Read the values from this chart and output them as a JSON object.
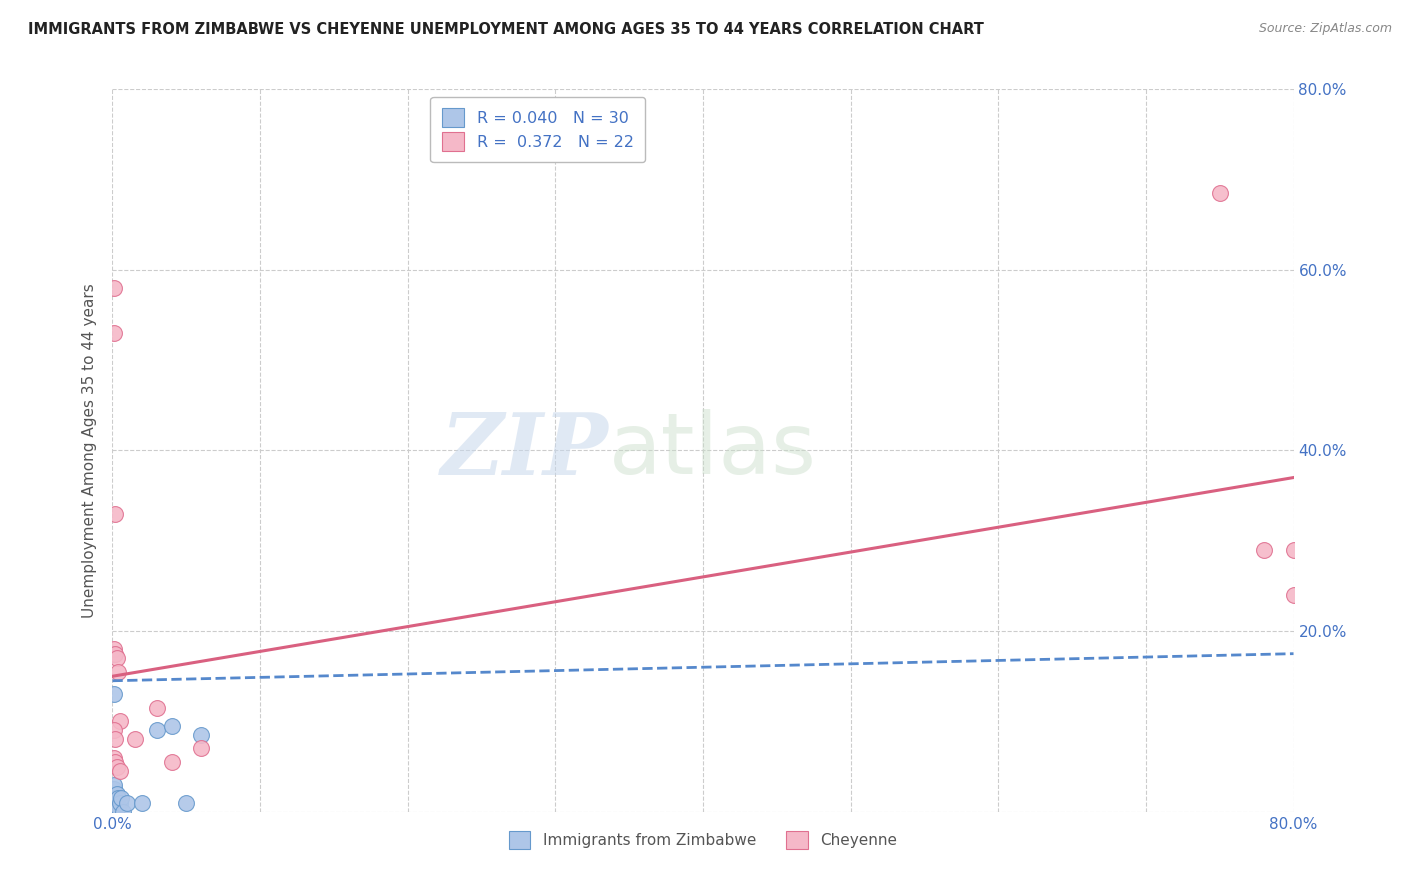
{
  "title": "IMMIGRANTS FROM ZIMBABWE VS CHEYENNE UNEMPLOYMENT AMONG AGES 35 TO 44 YEARS CORRELATION CHART",
  "source": "Source: ZipAtlas.com",
  "ylabel": "Unemployment Among Ages 35 to 44 years",
  "watermark_zip": "ZIP",
  "watermark_atlas": "atlas",
  "legend1_label": "Immigrants from Zimbabwe",
  "legend2_label": "Cheyenne",
  "R1": "0.040",
  "N1": "30",
  "R2": "0.372",
  "N2": "22",
  "blue_fill": "#aec6e8",
  "blue_edge": "#6699cc",
  "pink_fill": "#f5b8c8",
  "pink_edge": "#e07090",
  "blue_line_color": "#5588cc",
  "pink_line_color": "#d96080",
  "scatter_blue": [
    [
      0.0,
      0.0
    ],
    [
      0.0,
      0.01
    ],
    [
      0.0,
      0.02
    ],
    [
      0.0,
      0.025
    ],
    [
      0.001,
      0.0
    ],
    [
      0.001,
      0.005
    ],
    [
      0.001,
      0.01
    ],
    [
      0.001,
      0.015
    ],
    [
      0.001,
      0.02
    ],
    [
      0.001,
      0.025
    ],
    [
      0.001,
      0.03
    ],
    [
      0.002,
      0.0
    ],
    [
      0.002,
      0.005
    ],
    [
      0.002,
      0.01
    ],
    [
      0.002,
      0.015
    ],
    [
      0.003,
      0.01
    ],
    [
      0.003,
      0.02
    ],
    [
      0.004,
      0.005
    ],
    [
      0.004,
      0.015
    ],
    [
      0.005,
      0.01
    ],
    [
      0.006,
      0.015
    ],
    [
      0.007,
      0.0
    ],
    [
      0.01,
      0.01
    ],
    [
      0.02,
      0.01
    ],
    [
      0.03,
      0.09
    ],
    [
      0.04,
      0.095
    ],
    [
      0.05,
      0.01
    ],
    [
      0.001,
      0.175
    ],
    [
      0.06,
      0.085
    ],
    [
      0.001,
      0.13
    ]
  ],
  "scatter_pink": [
    [
      0.001,
      0.58
    ],
    [
      0.001,
      0.53
    ],
    [
      0.002,
      0.33
    ],
    [
      0.001,
      0.18
    ],
    [
      0.002,
      0.175
    ],
    [
      0.003,
      0.17
    ],
    [
      0.004,
      0.155
    ],
    [
      0.005,
      0.1
    ],
    [
      0.001,
      0.09
    ],
    [
      0.002,
      0.08
    ],
    [
      0.001,
      0.06
    ],
    [
      0.002,
      0.055
    ],
    [
      0.003,
      0.05
    ],
    [
      0.005,
      0.045
    ],
    [
      0.015,
      0.08
    ],
    [
      0.03,
      0.115
    ],
    [
      0.04,
      0.055
    ],
    [
      0.06,
      0.07
    ],
    [
      0.75,
      0.685
    ],
    [
      0.78,
      0.29
    ],
    [
      0.8,
      0.29
    ],
    [
      0.8,
      0.24
    ]
  ],
  "blue_trend_x": [
    0.0,
    0.8
  ],
  "blue_trend_y": [
    0.145,
    0.175
  ],
  "pink_trend_x": [
    0.0,
    0.8
  ],
  "pink_trend_y": [
    0.15,
    0.37
  ],
  "xlim": [
    0.0,
    0.8
  ],
  "ylim": [
    0.0,
    0.8
  ],
  "xtick_positions": [
    0.0,
    0.1,
    0.2,
    0.3,
    0.4,
    0.5,
    0.6,
    0.7,
    0.8
  ],
  "xticklabels": [
    "0.0%",
    "",
    "",
    "",
    "",
    "",
    "",
    "",
    "80.0%"
  ],
  "ytick_positions": [
    0.0,
    0.2,
    0.4,
    0.6,
    0.8
  ],
  "yticklabels_right": [
    "",
    "20.0%",
    "40.0%",
    "60.0%",
    "80.0%"
  ],
  "background_color": "#ffffff",
  "grid_color": "#cccccc",
  "title_color": "#222222",
  "source_color": "#888888",
  "tick_label_color": "#4472c4"
}
